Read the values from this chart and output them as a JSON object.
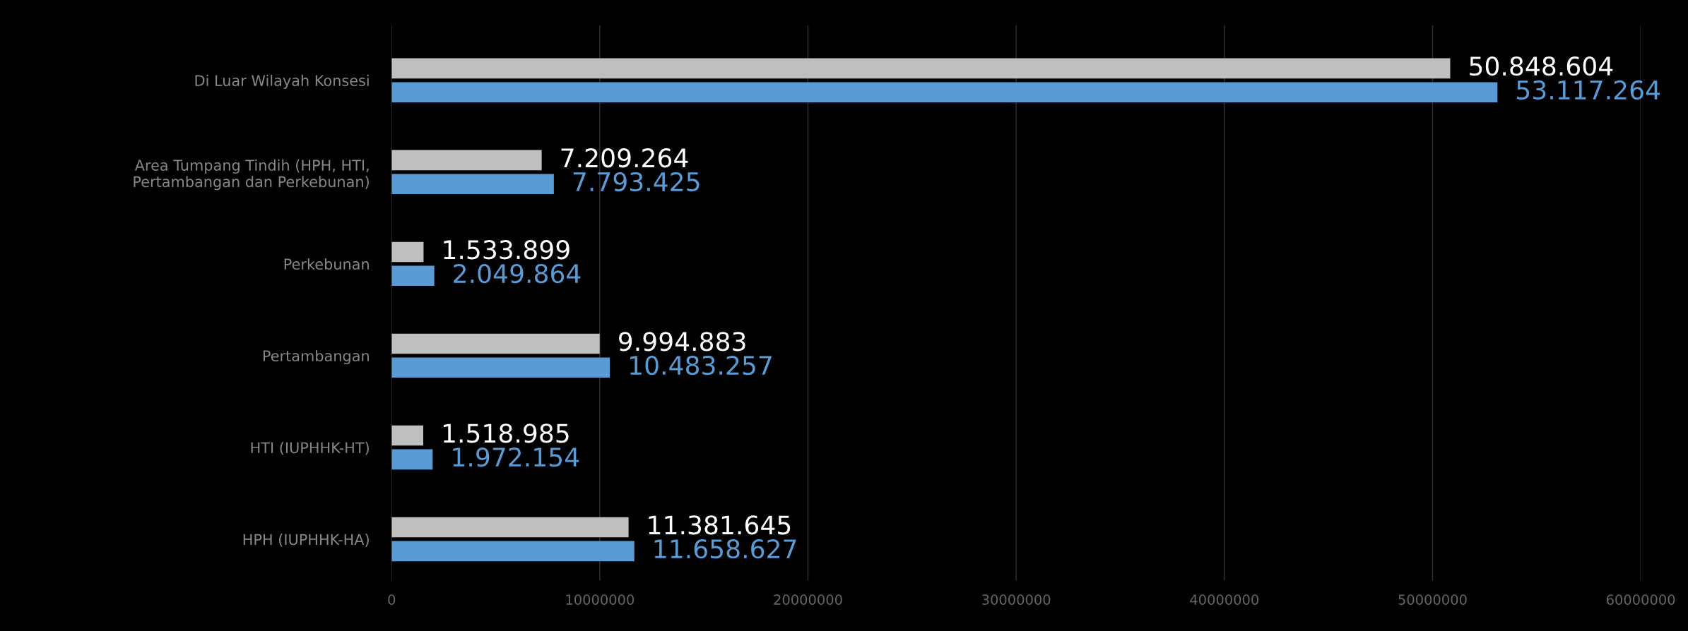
{
  "chart_data": {
    "type": "bar",
    "orientation": "horizontal",
    "categories": [
      "Di Luar Wilayah Konsesi",
      "Area Tumpang Tindih (HPH, HTI,\nPertambangan dan Perkebunan)",
      "Perkebunan",
      "Pertambangan",
      "HTI (IUPHHK-HT)",
      "HPH (IUPHHK-HA)"
    ],
    "series": [
      {
        "color": "#bfbfbf",
        "values": [
          50848604,
          7209264,
          1533899,
          9994883,
          1518985,
          11381645
        ],
        "value_labels": [
          "50.848.604",
          "7.209.264",
          "1.533.899",
          "9.994.883",
          "1.518.985",
          "11.381.645"
        ]
      },
      {
        "color": "#5b9bd5",
        "values": [
          53117264,
          7793425,
          2049864,
          10483257,
          1972154,
          11658627
        ],
        "value_labels": [
          "53.117.264",
          "7.793.425",
          "2.049.864",
          "10.483.257",
          "1.972.154",
          "11.658.627"
        ]
      }
    ],
    "xlim": [
      0,
      60000000
    ],
    "xticks": [
      {
        "value": 0,
        "label": "0"
      },
      {
        "value": 10000000,
        "label": "10000000"
      },
      {
        "value": 20000000,
        "label": "20000000"
      },
      {
        "value": 30000000,
        "label": "30000000"
      },
      {
        "value": 40000000,
        "label": "40000000"
      },
      {
        "value": 50000000,
        "label": "50000000"
      },
      {
        "value": 60000000,
        "label": "60000000"
      }
    ],
    "grid": "x",
    "legend": false
  }
}
